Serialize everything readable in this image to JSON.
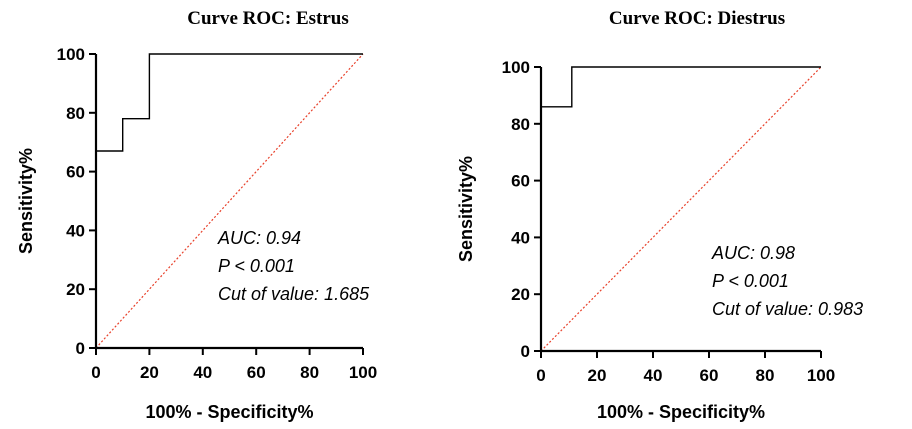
{
  "chart_data": [
    {
      "type": "line",
      "title": "Curve ROC: Estrus",
      "xlabel": "100% - Specificity%",
      "ylabel": "Sensitivity%",
      "xlim": [
        0,
        100
      ],
      "ylim": [
        0,
        100
      ],
      "x_ticks": [
        "0",
        "20",
        "40",
        "60",
        "80",
        "100"
      ],
      "y_ticks": [
        "0",
        "20",
        "40",
        "60",
        "80",
        "100"
      ],
      "grid": false,
      "series": [
        {
          "line_style": "solid",
          "color": "#000000",
          "x": [
            0,
            0,
            10,
            10,
            20,
            20,
            100
          ],
          "y": [
            0,
            67,
            67,
            78,
            78,
            100,
            100
          ]
        },
        {
          "line_style": "dotted",
          "color": "#e8402a",
          "x": [
            0,
            100
          ],
          "y": [
            0,
            100
          ]
        }
      ],
      "annotations": [
        "AUC: 0.94",
        "P < 0.001",
        "Cut of value: 1.685"
      ]
    },
    {
      "type": "line",
      "title": "Curve ROC: Diestrus",
      "xlabel": "100% - Specificity%",
      "ylabel": "Sensitivity%",
      "xlim": [
        0,
        100
      ],
      "ylim": [
        0,
        100
      ],
      "x_ticks": [
        "0",
        "20",
        "40",
        "60",
        "80",
        "100"
      ],
      "y_ticks": [
        "0",
        "20",
        "40",
        "60",
        "80",
        "100"
      ],
      "grid": false,
      "series": [
        {
          "line_style": "solid",
          "color": "#000000",
          "x": [
            0,
            0,
            11,
            11,
            100
          ],
          "y": [
            0,
            86,
            86,
            100,
            100
          ]
        },
        {
          "line_style": "dotted",
          "color": "#e8402a",
          "x": [
            0,
            100
          ],
          "y": [
            0,
            100
          ]
        }
      ],
      "annotations": [
        "AUC: 0.98",
        "P < 0.001",
        "Cut of value: 0.983"
      ]
    }
  ]
}
